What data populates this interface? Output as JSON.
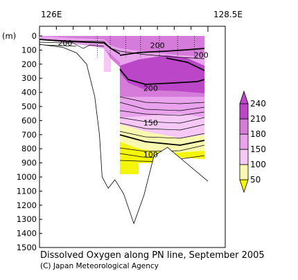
{
  "chart_data": {
    "type": "contour-section",
    "title": "Dissolved Oxygen along PN line, September 2005",
    "credit": "(C) Japan Meteorological Agency",
    "x_axis": {
      "labels": [
        "126E",
        "128.5E"
      ],
      "range": [
        126,
        128.5
      ]
    },
    "y_axis": {
      "unit": "(m)",
      "ticks": [
        0,
        100,
        200,
        300,
        400,
        500,
        600,
        700,
        800,
        900,
        1000,
        1100,
        1200,
        1300,
        1400,
        1500
      ],
      "range": [
        0,
        1500
      ],
      "inverted": true
    },
    "contour_labels": [
      {
        "text": "200",
        "lon": 126.38,
        "depth": 60
      },
      {
        "text": "200",
        "lon": 127.75,
        "depth": 75
      },
      {
        "text": "200",
        "lon": 128.4,
        "depth": 145
      },
      {
        "text": "200",
        "lon": 127.65,
        "depth": 380
      },
      {
        "text": "150",
        "lon": 127.65,
        "depth": 625
      },
      {
        "text": "100",
        "lon": 127.65,
        "depth": 850
      }
    ],
    "bottom_profile": [
      {
        "lon": 126.0,
        "depth": 60
      },
      {
        "lon": 126.34,
        "depth": 80
      },
      {
        "lon": 126.55,
        "depth": 120
      },
      {
        "lon": 126.7,
        "depth": 200
      },
      {
        "lon": 126.82,
        "depth": 430
      },
      {
        "lon": 126.89,
        "depth": 700
      },
      {
        "lon": 126.93,
        "depth": 1000
      },
      {
        "lon": 127.02,
        "depth": 1080
      },
      {
        "lon": 127.12,
        "depth": 1020
      },
      {
        "lon": 127.25,
        "depth": 1120
      },
      {
        "lon": 127.4,
        "depth": 1330
      },
      {
        "lon": 127.55,
        "depth": 1130
      },
      {
        "lon": 127.7,
        "depth": 850
      },
      {
        "lon": 127.9,
        "depth": 790
      },
      {
        "lon": 128.1,
        "depth": 870
      },
      {
        "lon": 128.5,
        "depth": 1030
      }
    ],
    "colorbar": {
      "levels": [
        50,
        100,
        150,
        180,
        210,
        240
      ],
      "colors": [
        "#f5f50a",
        "#f8f8b0",
        "#f6c8f6",
        "#e9a2ec",
        "#d57bd9",
        "#bb47c8"
      ],
      "extend": "both"
    }
  }
}
